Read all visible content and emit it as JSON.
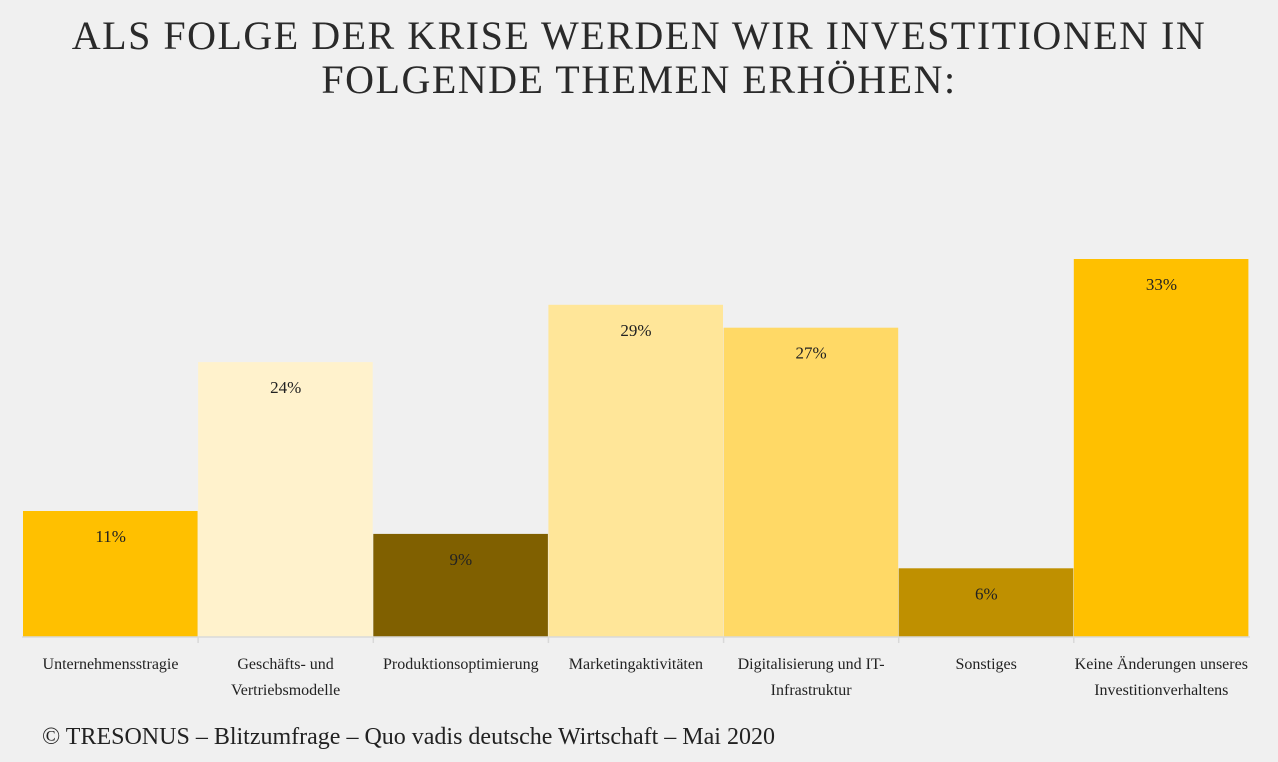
{
  "title": "Als Folge der Krise werden wir Investitionen in folgende Themen erhöhen:",
  "footer": "© TRESONUS – Blitzumfrage – Quo vadis deutsche Wirtschaft – Mai 2020",
  "chart_data": {
    "type": "bar",
    "title": "Als Folge der Krise werden wir Investitionen in folgende Themen erhöhen:",
    "categories": [
      "Unternehmensstragie",
      "Geschäfts- und Vertriebsmodelle",
      "Produktionsoptimierung",
      "Marketingaktivitäten",
      "Digitalisierung und IT-Infrastruktur",
      "Sonstiges",
      "Keine Änderungen unseres Investitionverhaltens"
    ],
    "values": [
      11,
      24,
      9,
      29,
      27,
      6,
      33
    ],
    "data_labels": [
      "11%",
      "24%",
      "9%",
      "29%",
      "27%",
      "6%",
      "33%"
    ],
    "bar_colors": [
      "#ffc000",
      "#fff2cc",
      "#806000",
      "#ffe699",
      "#ffd966",
      "#bf9000",
      "#ffc000"
    ],
    "ylim": [
      0,
      33
    ],
    "grid": false,
    "legend": "none"
  }
}
